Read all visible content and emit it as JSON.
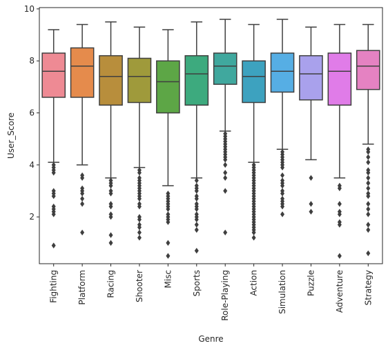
{
  "chart_data": {
    "type": "box",
    "xlabel": "Genre",
    "ylabel": "User_Score",
    "ylim": [
      0.2,
      10.05
    ],
    "yticks": [
      2,
      4,
      6,
      8,
      10
    ],
    "grid": false,
    "legend": "none",
    "box_stroke": "#3f3f3f",
    "categories": [
      {
        "label": "Fighting",
        "color": "#ee8a94",
        "whisker_low": 4.1,
        "q1": 6.6,
        "median": 7.6,
        "q3": 8.3,
        "whisker_high": 9.2,
        "outliers": [
          4.0,
          3.9,
          3.8,
          3.7,
          3.0,
          2.9,
          2.8,
          2.4,
          2.3,
          2.2,
          2.1,
          0.9
        ]
      },
      {
        "label": "Platform",
        "color": "#e58b4c",
        "whisker_low": 4.0,
        "q1": 6.6,
        "median": 7.8,
        "q3": 8.5,
        "whisker_high": 9.4,
        "outliers": [
          3.6,
          3.5,
          3.1,
          3.0,
          2.9,
          2.7,
          2.5,
          1.4
        ]
      },
      {
        "label": "Racing",
        "color": "#b88e3c",
        "whisker_low": 3.5,
        "q1": 6.3,
        "median": 7.4,
        "q3": 8.2,
        "whisker_high": 9.5,
        "outliers": [
          3.4,
          3.3,
          3.2,
          3.0,
          2.9,
          2.5,
          2.4,
          2.1,
          2.0,
          1.3,
          1.0
        ]
      },
      {
        "label": "Shooter",
        "color": "#9f9a3b",
        "whisker_low": 3.9,
        "q1": 6.4,
        "median": 7.4,
        "q3": 8.1,
        "whisker_high": 9.3,
        "outliers": [
          3.8,
          3.7,
          3.5,
          3.4,
          3.3,
          3.2,
          3.1,
          3.0,
          2.9,
          2.8,
          2.7,
          2.5,
          2.4,
          2.0,
          1.9,
          1.7,
          1.6,
          1.4,
          1.2
        ]
      },
      {
        "label": "Misc",
        "color": "#5da646",
        "whisker_low": 3.2,
        "q1": 6.0,
        "median": 7.2,
        "q3": 8.0,
        "whisker_high": 9.2,
        "outliers": [
          2.9,
          2.8,
          2.7,
          2.6,
          2.5,
          2.4,
          2.3,
          2.1,
          2.0,
          1.9,
          1.8,
          1.0,
          0.5
        ]
      },
      {
        "label": "Sports",
        "color": "#3daa7e",
        "whisker_low": 3.5,
        "q1": 6.3,
        "median": 7.5,
        "q3": 8.2,
        "whisker_high": 9.5,
        "outliers": [
          3.4,
          3.2,
          3.1,
          3.0,
          2.8,
          2.7,
          2.5,
          2.4,
          2.3,
          2.1,
          2.0,
          1.9,
          1.7,
          1.5,
          0.7
        ]
      },
      {
        "label": "Role-Playing",
        "color": "#40a89e",
        "whisker_low": 5.3,
        "q1": 7.1,
        "median": 7.8,
        "q3": 8.3,
        "whisker_high": 9.6,
        "outliers": [
          5.2,
          5.1,
          5.0,
          4.9,
          4.8,
          4.7,
          4.6,
          4.5,
          4.4,
          4.3,
          4.2,
          4.0,
          3.7,
          3.5,
          3.0,
          1.4
        ]
      },
      {
        "label": "Action",
        "color": "#3da2bf",
        "whisker_low": 4.1,
        "q1": 6.4,
        "median": 7.4,
        "q3": 8.0,
        "whisker_high": 9.4,
        "outliers": [
          4.0,
          3.9,
          3.8,
          3.7,
          3.6,
          3.5,
          3.4,
          3.3,
          3.2,
          3.1,
          3.0,
          2.9,
          2.8,
          2.7,
          2.6,
          2.5,
          2.4,
          2.3,
          2.2,
          2.1,
          2.0,
          1.9,
          1.8,
          1.7,
          1.6,
          1.5,
          1.4,
          1.2
        ]
      },
      {
        "label": "Simulation",
        "color": "#56aee4",
        "whisker_low": 4.6,
        "q1": 6.8,
        "median": 7.6,
        "q3": 8.3,
        "whisker_high": 9.6,
        "outliers": [
          4.5,
          4.4,
          4.3,
          4.2,
          4.1,
          4.0,
          3.9,
          3.6,
          3.4,
          3.3,
          3.2,
          3.0,
          2.9,
          2.7,
          2.6,
          2.5,
          2.4,
          2.1
        ]
      },
      {
        "label": "Puzzle",
        "color": "#a9a1ec",
        "whisker_low": 4.2,
        "q1": 6.5,
        "median": 7.5,
        "q3": 8.2,
        "whisker_high": 9.3,
        "outliers": [
          3.5,
          2.5,
          2.2
        ]
      },
      {
        "label": "Adventure",
        "color": "#e07ce8",
        "whisker_low": 3.5,
        "q1": 6.3,
        "median": 7.6,
        "q3": 8.3,
        "whisker_high": 9.4,
        "outliers": [
          3.2,
          3.1,
          2.5,
          2.2,
          2.1,
          1.8,
          1.7,
          0.5
        ]
      },
      {
        "label": "Strategy",
        "color": "#e582c2",
        "whisker_low": 4.8,
        "q1": 6.9,
        "median": 7.8,
        "q3": 8.4,
        "whisker_high": 9.4,
        "outliers": [
          4.6,
          4.5,
          4.3,
          4.1,
          3.8,
          3.7,
          3.5,
          3.3,
          3.1,
          2.9,
          2.8,
          2.5,
          2.3,
          2.1,
          1.7,
          1.5,
          0.6
        ]
      }
    ]
  }
}
